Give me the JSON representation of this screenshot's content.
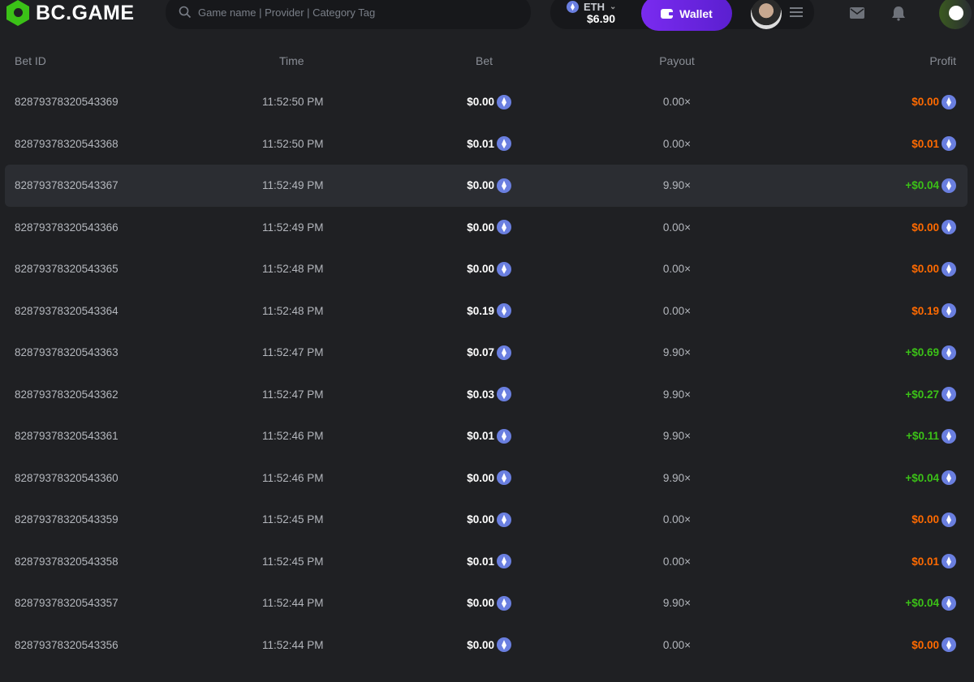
{
  "header": {
    "logo": "BC.GAME",
    "search_placeholder": "Game name | Provider | Category Tag",
    "currency": "ETH",
    "balance": "$6.90",
    "wallet_label": "Wallet"
  },
  "colors": {
    "win": "#3bc117",
    "loss": "#ff6a00",
    "accent": "#6b2ae8"
  },
  "table": {
    "columns": [
      "Bet ID",
      "Time",
      "Bet",
      "Payout",
      "Profit"
    ],
    "rows": [
      {
        "id": "82879378320543369",
        "time": "11:52:50 PM",
        "bet": "$0.00",
        "payout": "0.00×",
        "profit": "$0.00",
        "win": false
      },
      {
        "id": "82879378320543368",
        "time": "11:52:50 PM",
        "bet": "$0.01",
        "payout": "0.00×",
        "profit": "$0.01",
        "win": false
      },
      {
        "id": "82879378320543367",
        "time": "11:52:49 PM",
        "bet": "$0.00",
        "payout": "9.90×",
        "profit": "+$0.04",
        "win": true
      },
      {
        "id": "82879378320543366",
        "time": "11:52:49 PM",
        "bet": "$0.00",
        "payout": "0.00×",
        "profit": "$0.00",
        "win": false
      },
      {
        "id": "82879378320543365",
        "time": "11:52:48 PM",
        "bet": "$0.00",
        "payout": "0.00×",
        "profit": "$0.00",
        "win": false
      },
      {
        "id": "82879378320543364",
        "time": "11:52:48 PM",
        "bet": "$0.19",
        "payout": "0.00×",
        "profit": "$0.19",
        "win": false
      },
      {
        "id": "82879378320543363",
        "time": "11:52:47 PM",
        "bet": "$0.07",
        "payout": "9.90×",
        "profit": "+$0.69",
        "win": true
      },
      {
        "id": "82879378320543362",
        "time": "11:52:47 PM",
        "bet": "$0.03",
        "payout": "9.90×",
        "profit": "+$0.27",
        "win": true
      },
      {
        "id": "82879378320543361",
        "time": "11:52:46 PM",
        "bet": "$0.01",
        "payout": "9.90×",
        "profit": "+$0.11",
        "win": true
      },
      {
        "id": "82879378320543360",
        "time": "11:52:46 PM",
        "bet": "$0.00",
        "payout": "9.90×",
        "profit": "+$0.04",
        "win": true
      },
      {
        "id": "82879378320543359",
        "time": "11:52:45 PM",
        "bet": "$0.00",
        "payout": "0.00×",
        "profit": "$0.00",
        "win": false
      },
      {
        "id": "82879378320543358",
        "time": "11:52:45 PM",
        "bet": "$0.01",
        "payout": "0.00×",
        "profit": "$0.01",
        "win": false
      },
      {
        "id": "82879378320543357",
        "time": "11:52:44 PM",
        "bet": "$0.00",
        "payout": "9.90×",
        "profit": "+$0.04",
        "win": true
      },
      {
        "id": "82879378320543356",
        "time": "11:52:44 PM",
        "bet": "$0.00",
        "payout": "0.00×",
        "profit": "$0.00",
        "win": false
      }
    ]
  }
}
